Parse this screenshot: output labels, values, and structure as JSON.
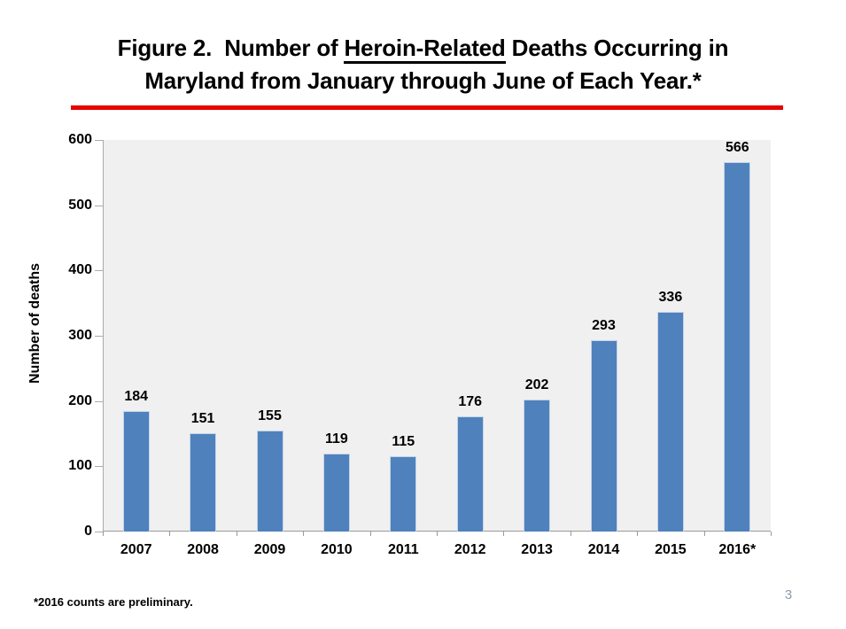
{
  "slide": {
    "title": {
      "line1_pre": "Figure 2.  Number of ",
      "line1_underlined": "Heroin-Related",
      "line1_post": " Deaths Occurring in",
      "line2": "Maryland from January through June of Each Year.*"
    },
    "footnote": "*2016 counts are preliminary.",
    "page_number": "3",
    "title_rule_color": "#e60000"
  },
  "chart_data": {
    "type": "bar",
    "title": "",
    "categories": [
      "2007",
      "2008",
      "2009",
      "2010",
      "2011",
      "2012",
      "2013",
      "2014",
      "2015",
      "2016*"
    ],
    "values": [
      184,
      151,
      155,
      119,
      115,
      176,
      202,
      293,
      336,
      566
    ],
    "xlabel": "",
    "ylabel": "Number of deaths",
    "ylim": [
      0,
      600
    ],
    "ytick_step": 100,
    "grid": false,
    "legend": false,
    "data_labels": true,
    "bar_color": "#4f81bd",
    "bar_edge_color": "#c3d4e9",
    "plot_bg": "#f0f0f0",
    "axis_color": "#ababab"
  }
}
